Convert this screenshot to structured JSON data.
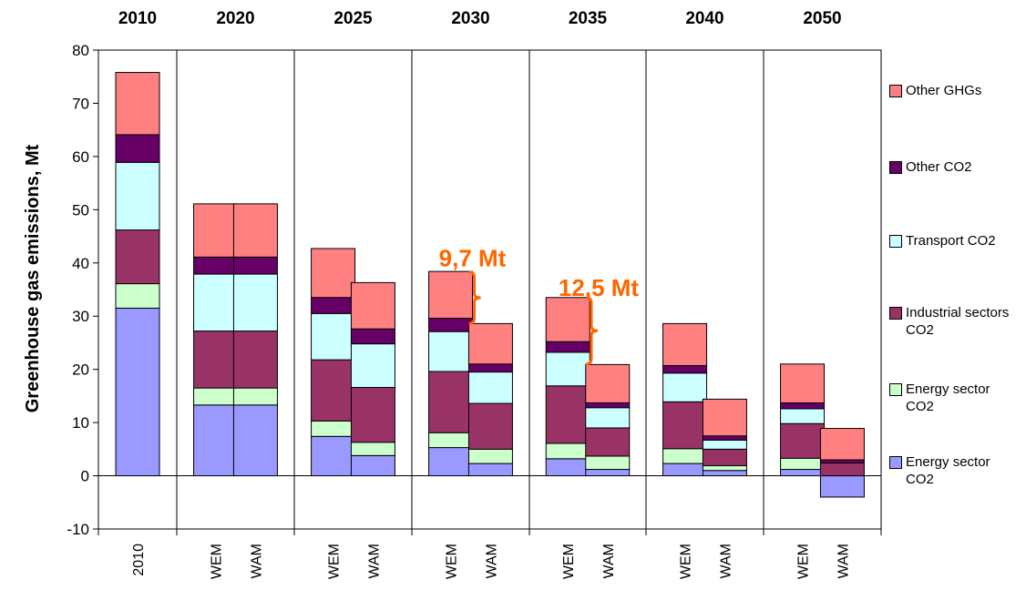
{
  "chart_data": {
    "type": "bar",
    "stacked": true,
    "ylabel": "Greenhouse gas emissions, Mt",
    "ylim": [
      -10,
      80
    ],
    "yticks": [
      -10,
      0,
      10,
      20,
      30,
      40,
      50,
      60,
      70,
      80
    ],
    "groups": [
      "2010",
      "2020",
      "2025",
      "2030",
      "2035",
      "2040",
      "2050"
    ],
    "categories": [
      {
        "group": "2010",
        "label": "2010"
      },
      {
        "group": "2020",
        "label": "WEM"
      },
      {
        "group": "2020",
        "label": "WAM"
      },
      {
        "group": "2025",
        "label": "WEM"
      },
      {
        "group": "2025",
        "label": "WAM"
      },
      {
        "group": "2030",
        "label": "WEM"
      },
      {
        "group": "2030",
        "label": "WAM"
      },
      {
        "group": "2035",
        "label": "WEM"
      },
      {
        "group": "2035",
        "label": "WAM"
      },
      {
        "group": "2040",
        "label": "WEM"
      },
      {
        "group": "2040",
        "label": "WAM"
      },
      {
        "group": "2050",
        "label": "WEM"
      },
      {
        "group": "2050",
        "label": "WAM"
      }
    ],
    "series": [
      {
        "name": "Energy sector CO2",
        "color": "#9999ff",
        "values": [
          31.5,
          13.3,
          13.3,
          7.4,
          3.8,
          5.3,
          2.3,
          3.2,
          1.2,
          2.3,
          1.0,
          1.2,
          -4.0
        ]
      },
      {
        "name": "Energy sector CO2",
        "color": "#ccffcc",
        "values": [
          4.6,
          3.2,
          3.2,
          2.9,
          2.5,
          2.8,
          2.7,
          2.9,
          2.5,
          2.8,
          0.9,
          2.1,
          0.0
        ]
      },
      {
        "name": "Industrial sectors CO2",
        "color": "#993366",
        "values": [
          10.1,
          10.7,
          10.7,
          11.5,
          10.3,
          11.5,
          8.6,
          10.8,
          5.3,
          8.8,
          3.1,
          6.5,
          2.4
        ]
      },
      {
        "name": "Transport CO2",
        "color": "#ccffff",
        "values": [
          12.7,
          10.7,
          10.7,
          8.7,
          8.2,
          7.5,
          5.9,
          6.3,
          3.8,
          5.4,
          1.7,
          2.8,
          0.0
        ]
      },
      {
        "name": "Other CO2",
        "color": "#660066",
        "values": [
          5.2,
          3.2,
          3.2,
          3.0,
          2.8,
          2.5,
          1.5,
          2.0,
          0.9,
          1.4,
          0.8,
          1.1,
          0.6
        ]
      },
      {
        "name": "Other GHGs",
        "color": "#ff8080",
        "values": [
          11.7,
          10.0,
          10.0,
          9.2,
          8.7,
          8.8,
          7.6,
          8.3,
          7.2,
          7.9,
          6.9,
          7.3,
          5.9
        ]
      }
    ],
    "annotations": [
      {
        "text": "9,7 Mt",
        "color": "#ff6600",
        "between_categories": [
          5,
          6
        ],
        "from_value": 38.3,
        "to_value": 28.6
      },
      {
        "text": "12,5 Mt",
        "color": "#ff6600",
        "between_categories": [
          7,
          8
        ],
        "from_value": 33.5,
        "to_value": 21.0
      }
    ],
    "legend": {
      "placement": "right",
      "order": [
        5,
        4,
        3,
        2,
        1,
        0
      ],
      "entries": [
        "Other GHGs",
        "Other CO2",
        "Transport CO2",
        "Industrial sectors CO2",
        "Energy sector CO2",
        "Energy sector CO2"
      ]
    },
    "grid": false
  }
}
